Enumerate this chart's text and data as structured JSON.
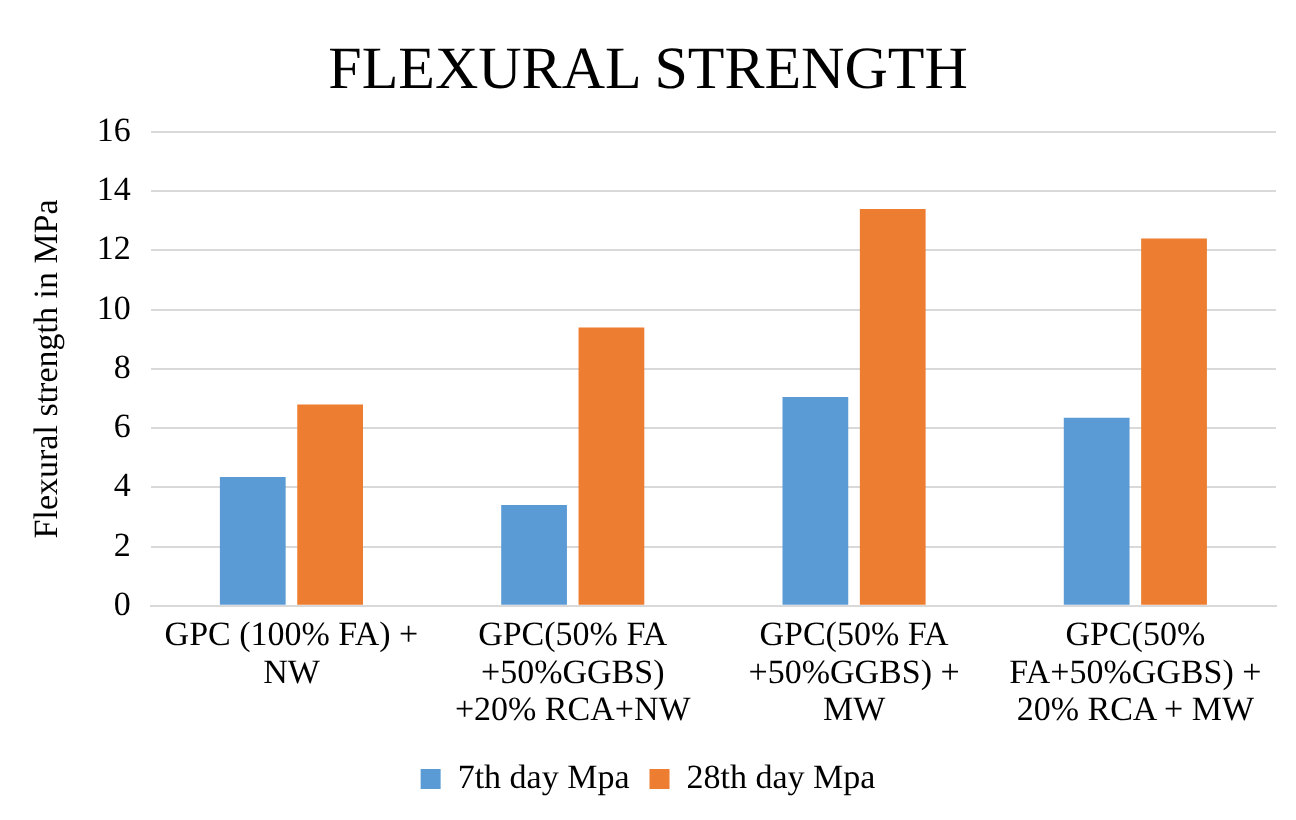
{
  "chart_data": {
    "type": "bar",
    "title": "FLEXURAL STRENGTH",
    "ylabel": "Flexural strength in MPa",
    "categories": [
      "GPC (100% FA) + NW",
      "GPC(50% FA +50%GGBS) +20% RCA+NW",
      "GPC(50% FA +50%GGBS) + MW",
      "GPC(50% FA+50%GGBS) + 20% RCA + MW"
    ],
    "series": [
      {
        "name": "7th day Mpa",
        "color": "#5b9bd5",
        "values": [
          4.35,
          3.4,
          7.05,
          6.35
        ]
      },
      {
        "name": "28th day Mpa",
        "color": "#ed7d31",
        "values": [
          6.8,
          9.4,
          13.4,
          12.4
        ]
      }
    ],
    "ylim": [
      0,
      16
    ],
    "yticks": [
      0,
      2,
      4,
      6,
      8,
      10,
      12,
      14,
      16
    ],
    "grid": "y",
    "legend": "bottom"
  }
}
